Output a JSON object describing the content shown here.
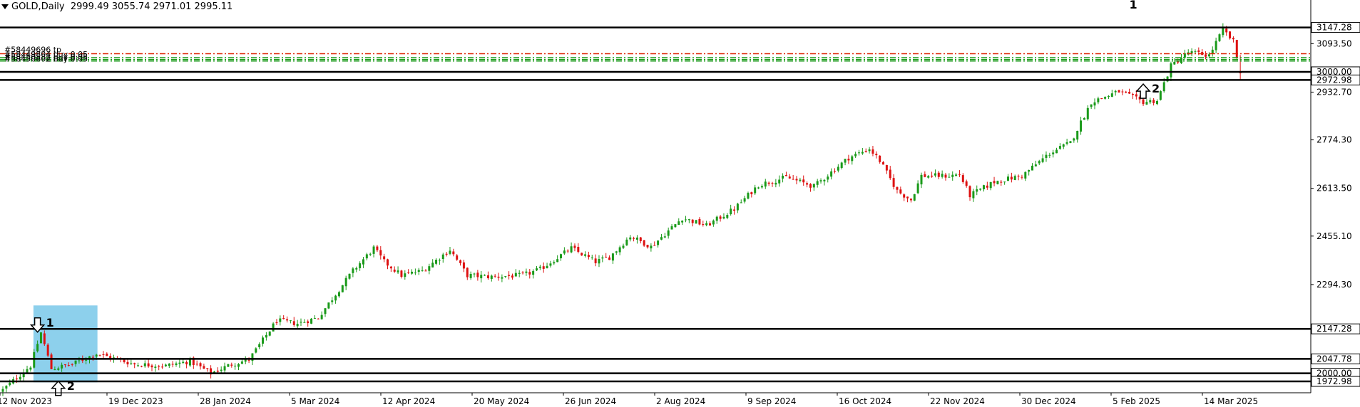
{
  "header": {
    "symbol_timeframe": "GOLD,Daily",
    "ohlc": "2999.49 3055.74 2971.01 2995.11"
  },
  "orders": [
    {
      "label": "#58449696 tp",
      "price": 3060,
      "color": "#dd2200",
      "style": "dashdot"
    },
    {
      "label": "#58449804 buy 0.05",
      "price": 3047,
      "color": "#1a9a1a",
      "style": "dashdot"
    },
    {
      "label": "#58450582 buy 0.05",
      "price": 3041,
      "color": "#1a9a1a",
      "style": "dashdot"
    },
    {
      "label": "#58450602 buy 0.05",
      "price": 3036,
      "color": "#1a9a1a",
      "style": "dashdot"
    }
  ],
  "annotations": [
    {
      "text": "1",
      "arrow": "none",
      "price": 3210,
      "index": 326
    },
    {
      "text": "2",
      "arrow": "up",
      "price": 2936,
      "index": 329
    },
    {
      "text": "1",
      "arrow": "down",
      "price": 2160,
      "index": 10
    },
    {
      "text": "2",
      "arrow": "up",
      "price": 1950,
      "index": 16
    }
  ],
  "chart_data": {
    "type": "candlestick",
    "y_axis_ticks": [
      3093.5,
      2932.7,
      2774.3,
      2613.5,
      2455.1,
      2294.3
    ],
    "x_axis_labels": [
      "12 Nov 2023",
      "19 Dec 2023",
      "28 Jan 2024",
      "5 Mar 2024",
      "12 Apr 2024",
      "20 May 2024",
      "26 Jun 2024",
      "2 Aug 2024",
      "9 Sep 2024",
      "16 Oct 2024",
      "22 Nov 2024",
      "30 Dec 2024",
      "5 Feb 2025",
      "14 Mar 2025"
    ],
    "ylim": [
      1940,
      3210
    ],
    "horizontal_levels": [
      {
        "price": 3147.28,
        "label": "3147.28",
        "color": "#000000"
      },
      {
        "price": 3000.0,
        "label": "3000.00",
        "color": "#000000"
      },
      {
        "price": 2972.98,
        "label": "2972.98",
        "color": "#000000"
      },
      {
        "price": 2147.28,
        "label": "2147.28",
        "color": "#000000"
      },
      {
        "price": 2047.78,
        "label": "2047.78",
        "color": "#000000"
      },
      {
        "price": 2000.0,
        "label": "2000.00",
        "color": "#000000"
      },
      {
        "price": 1972.98,
        "label": "1972.98",
        "color": "#000000"
      }
    ],
    "highlight_zone": {
      "from_index": 8,
      "to_index": 24,
      "price_low": 1970,
      "price_high": 2225,
      "color": "#87CEEB"
    },
    "bull_color": "#1a9a1a",
    "bear_color": "#dd1111",
    "close_path": [
      [
        0,
        1945
      ],
      [
        8,
        2025
      ],
      [
        11,
        2135
      ],
      [
        14,
        2015
      ],
      [
        20,
        2030
      ],
      [
        27,
        2065
      ],
      [
        38,
        2030
      ],
      [
        47,
        2025
      ],
      [
        54,
        2040
      ],
      [
        60,
        2000
      ],
      [
        66,
        2030
      ],
      [
        71,
        2045
      ],
      [
        75,
        2110
      ],
      [
        79,
        2175
      ],
      [
        85,
        2165
      ],
      [
        91,
        2185
      ],
      [
        101,
        2340
      ],
      [
        107,
        2415
      ],
      [
        110,
        2370
      ],
      [
        115,
        2325
      ],
      [
        121,
        2340
      ],
      [
        129,
        2410
      ],
      [
        134,
        2325
      ],
      [
        141,
        2320
      ],
      [
        150,
        2325
      ],
      [
        155,
        2345
      ],
      [
        164,
        2415
      ],
      [
        171,
        2370
      ],
      [
        175,
        2385
      ],
      [
        181,
        2455
      ],
      [
        187,
        2420
      ],
      [
        196,
        2515
      ],
      [
        203,
        2490
      ],
      [
        211,
        2545
      ],
      [
        218,
        2625
      ],
      [
        226,
        2650
      ],
      [
        234,
        2620
      ],
      [
        244,
        2715
      ],
      [
        250,
        2745
      ],
      [
        253,
        2705
      ],
      [
        258,
        2605
      ],
      [
        262,
        2575
      ],
      [
        265,
        2655
      ],
      [
        273,
        2655
      ],
      [
        276,
        2660
      ],
      [
        279,
        2590
      ],
      [
        286,
        2635
      ],
      [
        294,
        2655
      ],
      [
        302,
        2730
      ],
      [
        308,
        2765
      ],
      [
        314,
        2900
      ],
      [
        322,
        2935
      ],
      [
        329,
        2900
      ],
      [
        333,
        2905
      ],
      [
        337,
        3020
      ],
      [
        342,
        3065
      ],
      [
        348,
        3055
      ],
      [
        352,
        3140
      ],
      [
        355,
        3100
      ],
      [
        357,
        2995
      ]
    ],
    "n_candles": 358
  }
}
